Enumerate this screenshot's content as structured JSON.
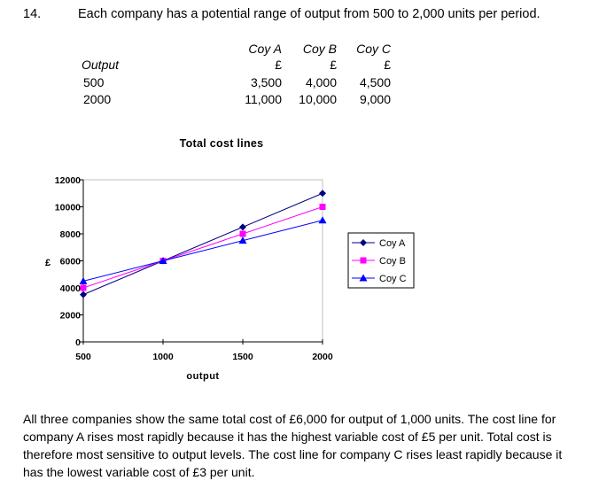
{
  "question": {
    "number": "14.",
    "intro": "Each company has a potential range of output from 500 to 2,000 units per period."
  },
  "table": {
    "header_label": "Output",
    "columns": [
      "Coy A",
      "Coy B",
      "Coy C"
    ],
    "currency": "£",
    "rows": [
      {
        "output": "500",
        "values": [
          "3,500",
          "4,000",
          "4,500"
        ]
      },
      {
        "output": "2000",
        "values": [
          "11,000",
          "10,000",
          "9,000"
        ]
      }
    ]
  },
  "chart_data": {
    "type": "line",
    "title": "Total cost lines",
    "xlabel": "output",
    "ylabel": "£",
    "x": [
      500,
      1000,
      1500,
      2000
    ],
    "xlim": [
      500,
      2000
    ],
    "ylim": [
      0,
      12000
    ],
    "x_ticks": [
      "500",
      "1000",
      "1500",
      "2000"
    ],
    "y_ticks": [
      "0",
      "2000",
      "4000",
      "6000",
      "8000",
      "10000",
      "12000"
    ],
    "grid": false,
    "legend_position": "right",
    "series": [
      {
        "name": "Coy A",
        "values": [
          3500,
          6000,
          8500,
          11000
        ],
        "color": "#000080",
        "marker": "diamond"
      },
      {
        "name": "Coy B",
        "values": [
          4000,
          6000,
          8000,
          10000
        ],
        "color": "#ff00ff",
        "marker": "square"
      },
      {
        "name": "Coy C",
        "values": [
          4500,
          6000,
          7500,
          9000
        ],
        "color": "#0000ff",
        "marker": "triangle"
      }
    ]
  },
  "paragraph": "All three companies show the same total cost of £6,000 for output of 1,000 units.  The cost line for company A rises most rapidly because it has the highest variable cost of £5 per unit.  Total cost is therefore most sensitive to output levels.  The cost line for company C rises least rapidly because it has the lowest variable cost of £3 per unit."
}
